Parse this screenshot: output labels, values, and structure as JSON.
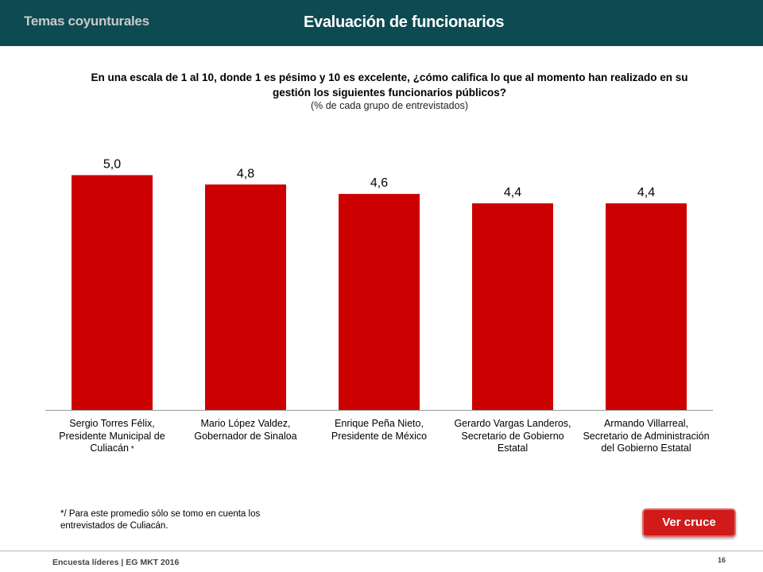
{
  "header": {
    "section": "Temas coyunturales",
    "title": "Evaluación de funcionarios"
  },
  "question": "En una escala de 1 al 10, donde 1 es pésimo y 10 es excelente, ¿cómo califica lo que al momento han realizado en su gestión los siguientes funcionarios públicos?",
  "note": "(% de cada grupo de entrevistados)",
  "chart_data": {
    "type": "bar",
    "categories": [
      "Sergio Torres Félix, Presidente Municipal de Culiacán",
      "Mario López Valdez, Gobernador de Sinaloa",
      "Enrique Peña Nieto, Presidente de México",
      "Gerardo Vargas Landeros, Secretario de Gobierno Estatal",
      "Armando Villarreal, Secretario de Administración del Gobierno Estatal"
    ],
    "category_star": "*",
    "values": [
      5.0,
      4.8,
      4.6,
      4.4,
      4.4
    ],
    "value_labels": [
      "5,0",
      "4,8",
      "4,6",
      "4,4",
      "4,4"
    ],
    "ylim": [
      0,
      5.6
    ],
    "color": "#cc0000"
  },
  "footnote": "*/ Para este promedio sólo se tomo en cuenta los entrevistados de Culiacán.",
  "button": {
    "label": "Ver cruce"
  },
  "footer": {
    "source": "Encuesta líderes | EG MKT 2016",
    "page": "16"
  },
  "colors": {
    "header_bg": "#0d4a52",
    "bar": "#cc0000",
    "button": "#d11a1a"
  }
}
